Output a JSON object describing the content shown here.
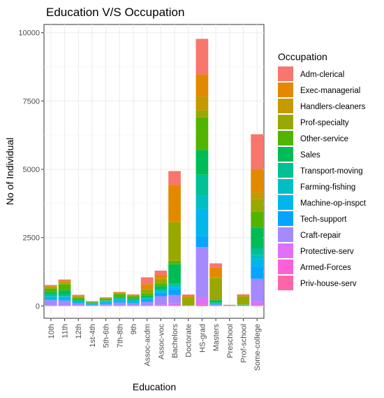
{
  "chart_data": {
    "type": "bar",
    "stacked": true,
    "title": "Education V/S Occupation",
    "xlabel": "Education",
    "ylabel": "No of Individual",
    "ylim": [
      -450,
      10300
    ],
    "yticks": [
      0,
      2500,
      5000,
      7500,
      10000
    ],
    "grid": true,
    "legend": {
      "title": "Occupation",
      "placement": "right"
    },
    "categories": [
      "10th",
      "11th",
      "12th",
      "1st-4th",
      "5th-6th",
      "7th-8th",
      "9th",
      "Assoc-acdm",
      "Assoc-voc",
      "Bachelors",
      "Doctorate",
      "HS-grad",
      "Masters",
      "Preschool",
      "Prof-school",
      "Some-college"
    ],
    "series": [
      {
        "name": "Adm-clerical",
        "color": "#F8766D",
        "values": [
          28,
          36,
          25,
          6,
          8,
          15,
          15,
          250,
          170,
          500,
          30,
          1300,
          150,
          3,
          30,
          1270
        ]
      },
      {
        "name": "Exec-managerial",
        "color": "#E38900",
        "values": [
          28,
          32,
          23,
          3,
          6,
          14,
          14,
          160,
          120,
          1350,
          60,
          800,
          370,
          3,
          40,
          840
        ]
      },
      {
        "name": "Handlers-cleaners",
        "color": "#C49A00",
        "values": [
          50,
          75,
          30,
          12,
          30,
          40,
          32,
          20,
          20,
          30,
          5,
          520,
          10,
          3,
          5,
          250
        ]
      },
      {
        "name": "Prof-specialty",
        "color": "#99A800",
        "values": [
          20,
          25,
          20,
          3,
          5,
          5,
          10,
          170,
          180,
          1400,
          290,
          250,
          800,
          3,
          300,
          480
        ]
      },
      {
        "name": "Other-service",
        "color": "#53B400",
        "values": [
          135,
          230,
          60,
          35,
          60,
          110,
          80,
          70,
          80,
          130,
          5,
          1200,
          20,
          7,
          5,
          570
        ]
      },
      {
        "name": "Sales",
        "color": "#00BC56",
        "values": [
          70,
          150,
          55,
          5,
          10,
          30,
          30,
          80,
          100,
          700,
          5,
          900,
          85,
          1,
          5,
          750
        ]
      },
      {
        "name": "Transport-moving",
        "color": "#00C094",
        "values": [
          70,
          60,
          30,
          10,
          20,
          45,
          45,
          25,
          50,
          70,
          3,
          750,
          8,
          1,
          3,
          250
        ]
      },
      {
        "name": "Farming-fishing",
        "color": "#00BFC4",
        "values": [
          45,
          35,
          15,
          15,
          35,
          50,
          30,
          20,
          30,
          60,
          5,
          500,
          15,
          5,
          10,
          150
        ]
      },
      {
        "name": "Machine-op-inspct",
        "color": "#00B6EB",
        "values": [
          90,
          90,
          40,
          45,
          75,
          70,
          60,
          50,
          70,
          90,
          5,
          1000,
          20,
          10,
          10,
          280
        ]
      },
      {
        "name": "Tech-support",
        "color": "#06A4FF",
        "values": [
          20,
          40,
          20,
          2,
          5,
          10,
          10,
          50,
          120,
          200,
          5,
          400,
          30,
          1,
          10,
          450
        ]
      },
      {
        "name": "Craft-repair",
        "color": "#A58AFF",
        "values": [
          180,
          160,
          70,
          35,
          50,
          115,
          90,
          120,
          300,
          300,
          5,
          1850,
          40,
          3,
          5,
          830
        ]
      },
      {
        "name": "Protective-serv",
        "color": "#DF70F8",
        "values": [
          20,
          25,
          15,
          2,
          5,
          5,
          5,
          30,
          50,
          100,
          2,
          250,
          10,
          1,
          5,
          140
        ]
      },
      {
        "name": "Armed-Forces",
        "color": "#FB61D7",
        "values": [
          1,
          1,
          1,
          0,
          0,
          0,
          0,
          0,
          1,
          1,
          0,
          4,
          0,
          0,
          0,
          2
        ]
      },
      {
        "name": "Priv-house-serv",
        "color": "#FF66A8",
        "values": [
          10,
          10,
          5,
          5,
          10,
          8,
          8,
          3,
          3,
          5,
          0,
          50,
          2,
          3,
          0,
          20
        ]
      }
    ]
  }
}
